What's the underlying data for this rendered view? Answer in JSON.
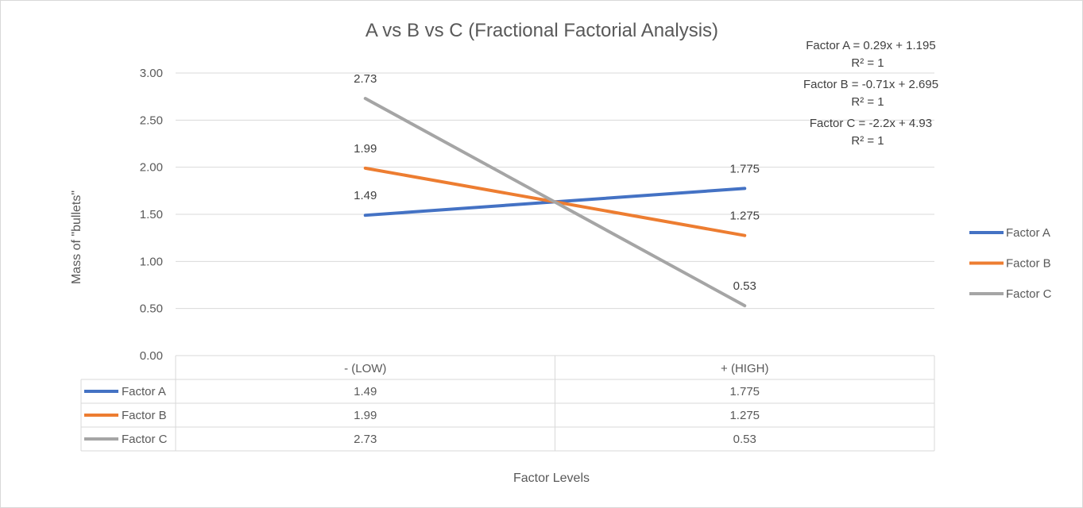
{
  "chart_data": {
    "type": "line",
    "title": "A vs B vs C (Fractional Factorial Analysis)",
    "xlabel": "Factor Levels",
    "ylabel": "Mass of \"bullets\"",
    "categories": [
      "- (LOW)",
      "+ (HIGH)"
    ],
    "ylim": [
      0,
      3
    ],
    "yticks": [
      "0.00",
      "0.50",
      "1.00",
      "1.50",
      "2.00",
      "2.50",
      "3.00"
    ],
    "grid": true,
    "legend_position": "right",
    "series": [
      {
        "name": "Factor A",
        "color": "#4472c4",
        "values": [
          1.49,
          1.775
        ],
        "labels": [
          "1.49",
          "1.775"
        ]
      },
      {
        "name": "Factor B",
        "color": "#ed7d31",
        "values": [
          1.99,
          1.275
        ],
        "labels": [
          "1.99",
          "1.275"
        ]
      },
      {
        "name": "Factor C",
        "color": "#a5a5a5",
        "values": [
          2.73,
          0.53
        ],
        "labels": [
          "2.73",
          "0.53"
        ]
      }
    ],
    "trendline_equations": [
      {
        "equation": "Factor A = 0.29x + 1.195",
        "r2": "R² = 1"
      },
      {
        "equation": "Factor B = -0.71x + 2.695",
        "r2": "R² = 1"
      },
      {
        "equation": "Factor C = -2.2x + 4.93",
        "r2": "R² = 1"
      }
    ]
  }
}
